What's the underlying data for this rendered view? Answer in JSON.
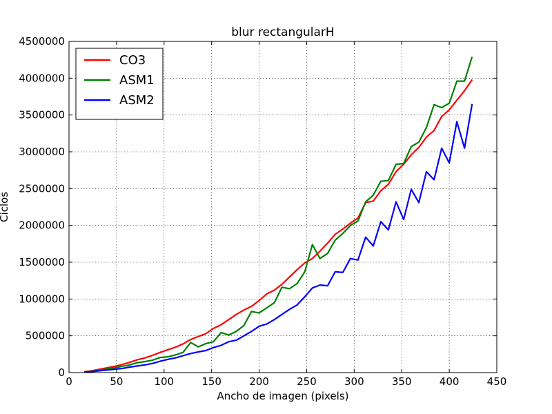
{
  "chart_data": {
    "type": "line",
    "title": "blur rectangularH",
    "xlabel": "Ancho de imagen (pixels)",
    "ylabel": "Ciclos",
    "xlim": [
      0,
      450
    ],
    "ylim": [
      0,
      4500000
    ],
    "xticks": [
      0,
      50,
      100,
      150,
      200,
      250,
      300,
      350,
      400,
      450
    ],
    "xtick_labels": [
      "0",
      "50",
      "100",
      "150",
      "200",
      "250",
      "300",
      "350",
      "400",
      "450"
    ],
    "yticks": [
      0,
      500000,
      1000000,
      1500000,
      2000000,
      2500000,
      3000000,
      3500000,
      4000000,
      4500000
    ],
    "ytick_labels": [
      "0",
      "500000",
      "1000000",
      "1500000",
      "2000000",
      "2500000",
      "3000000",
      "3500000",
      "4000000",
      "4500000"
    ],
    "grid": true,
    "legend_position": "top-left",
    "x": [
      16,
      24,
      32,
      40,
      48,
      56,
      64,
      72,
      80,
      88,
      96,
      104,
      112,
      120,
      128,
      136,
      144,
      152,
      160,
      168,
      176,
      184,
      192,
      200,
      208,
      216,
      224,
      232,
      240,
      248,
      256,
      264,
      272,
      280,
      288,
      296,
      304,
      312,
      320,
      328,
      336,
      344,
      352,
      360,
      368,
      376,
      384,
      392,
      400,
      408,
      416,
      424
    ],
    "series": [
      {
        "name": "CO3",
        "color": "#ff0000",
        "values": [
          10000,
          25000,
          45000,
          65000,
          85000,
          110000,
          140000,
          175000,
          200000,
          235000,
          275000,
          310000,
          345000,
          390000,
          450000,
          490000,
          530000,
          600000,
          650000,
          720000,
          790000,
          850000,
          900000,
          980000,
          1070000,
          1120000,
          1200000,
          1300000,
          1400000,
          1490000,
          1550000,
          1650000,
          1760000,
          1880000,
          1950000,
          2030000,
          2100000,
          2310000,
          2330000,
          2470000,
          2560000,
          2730000,
          2830000,
          2960000,
          3060000,
          3200000,
          3290000,
          3480000,
          3570000,
          3700000,
          3830000,
          3980000
        ]
      },
      {
        "name": "ASM1",
        "color": "#008000",
        "values": [
          8000,
          18000,
          32000,
          50000,
          65000,
          85000,
          105000,
          135000,
          150000,
          170000,
          205000,
          215000,
          240000,
          275000,
          410000,
          350000,
          395000,
          420000,
          545000,
          510000,
          560000,
          640000,
          830000,
          810000,
          880000,
          950000,
          1160000,
          1140000,
          1210000,
          1370000,
          1740000,
          1550000,
          1620000,
          1800000,
          1890000,
          2000000,
          2060000,
          2320000,
          2410000,
          2600000,
          2610000,
          2830000,
          2840000,
          3070000,
          3130000,
          3330000,
          3640000,
          3600000,
          3660000,
          3960000,
          3960000,
          4290000
        ]
      },
      {
        "name": "ASM2",
        "color": "#0000ff",
        "values": [
          6000,
          14000,
          24000,
          35000,
          45000,
          56000,
          75000,
          90000,
          105000,
          125000,
          155000,
          180000,
          200000,
          230000,
          260000,
          280000,
          300000,
          340000,
          370000,
          420000,
          440000,
          500000,
          560000,
          630000,
          660000,
          720000,
          790000,
          860000,
          920000,
          1030000,
          1150000,
          1190000,
          1180000,
          1370000,
          1360000,
          1550000,
          1530000,
          1840000,
          1720000,
          2050000,
          1940000,
          2320000,
          2080000,
          2490000,
          2310000,
          2730000,
          2620000,
          3050000,
          2850000,
          3410000,
          3050000,
          3650000
        ]
      }
    ]
  }
}
